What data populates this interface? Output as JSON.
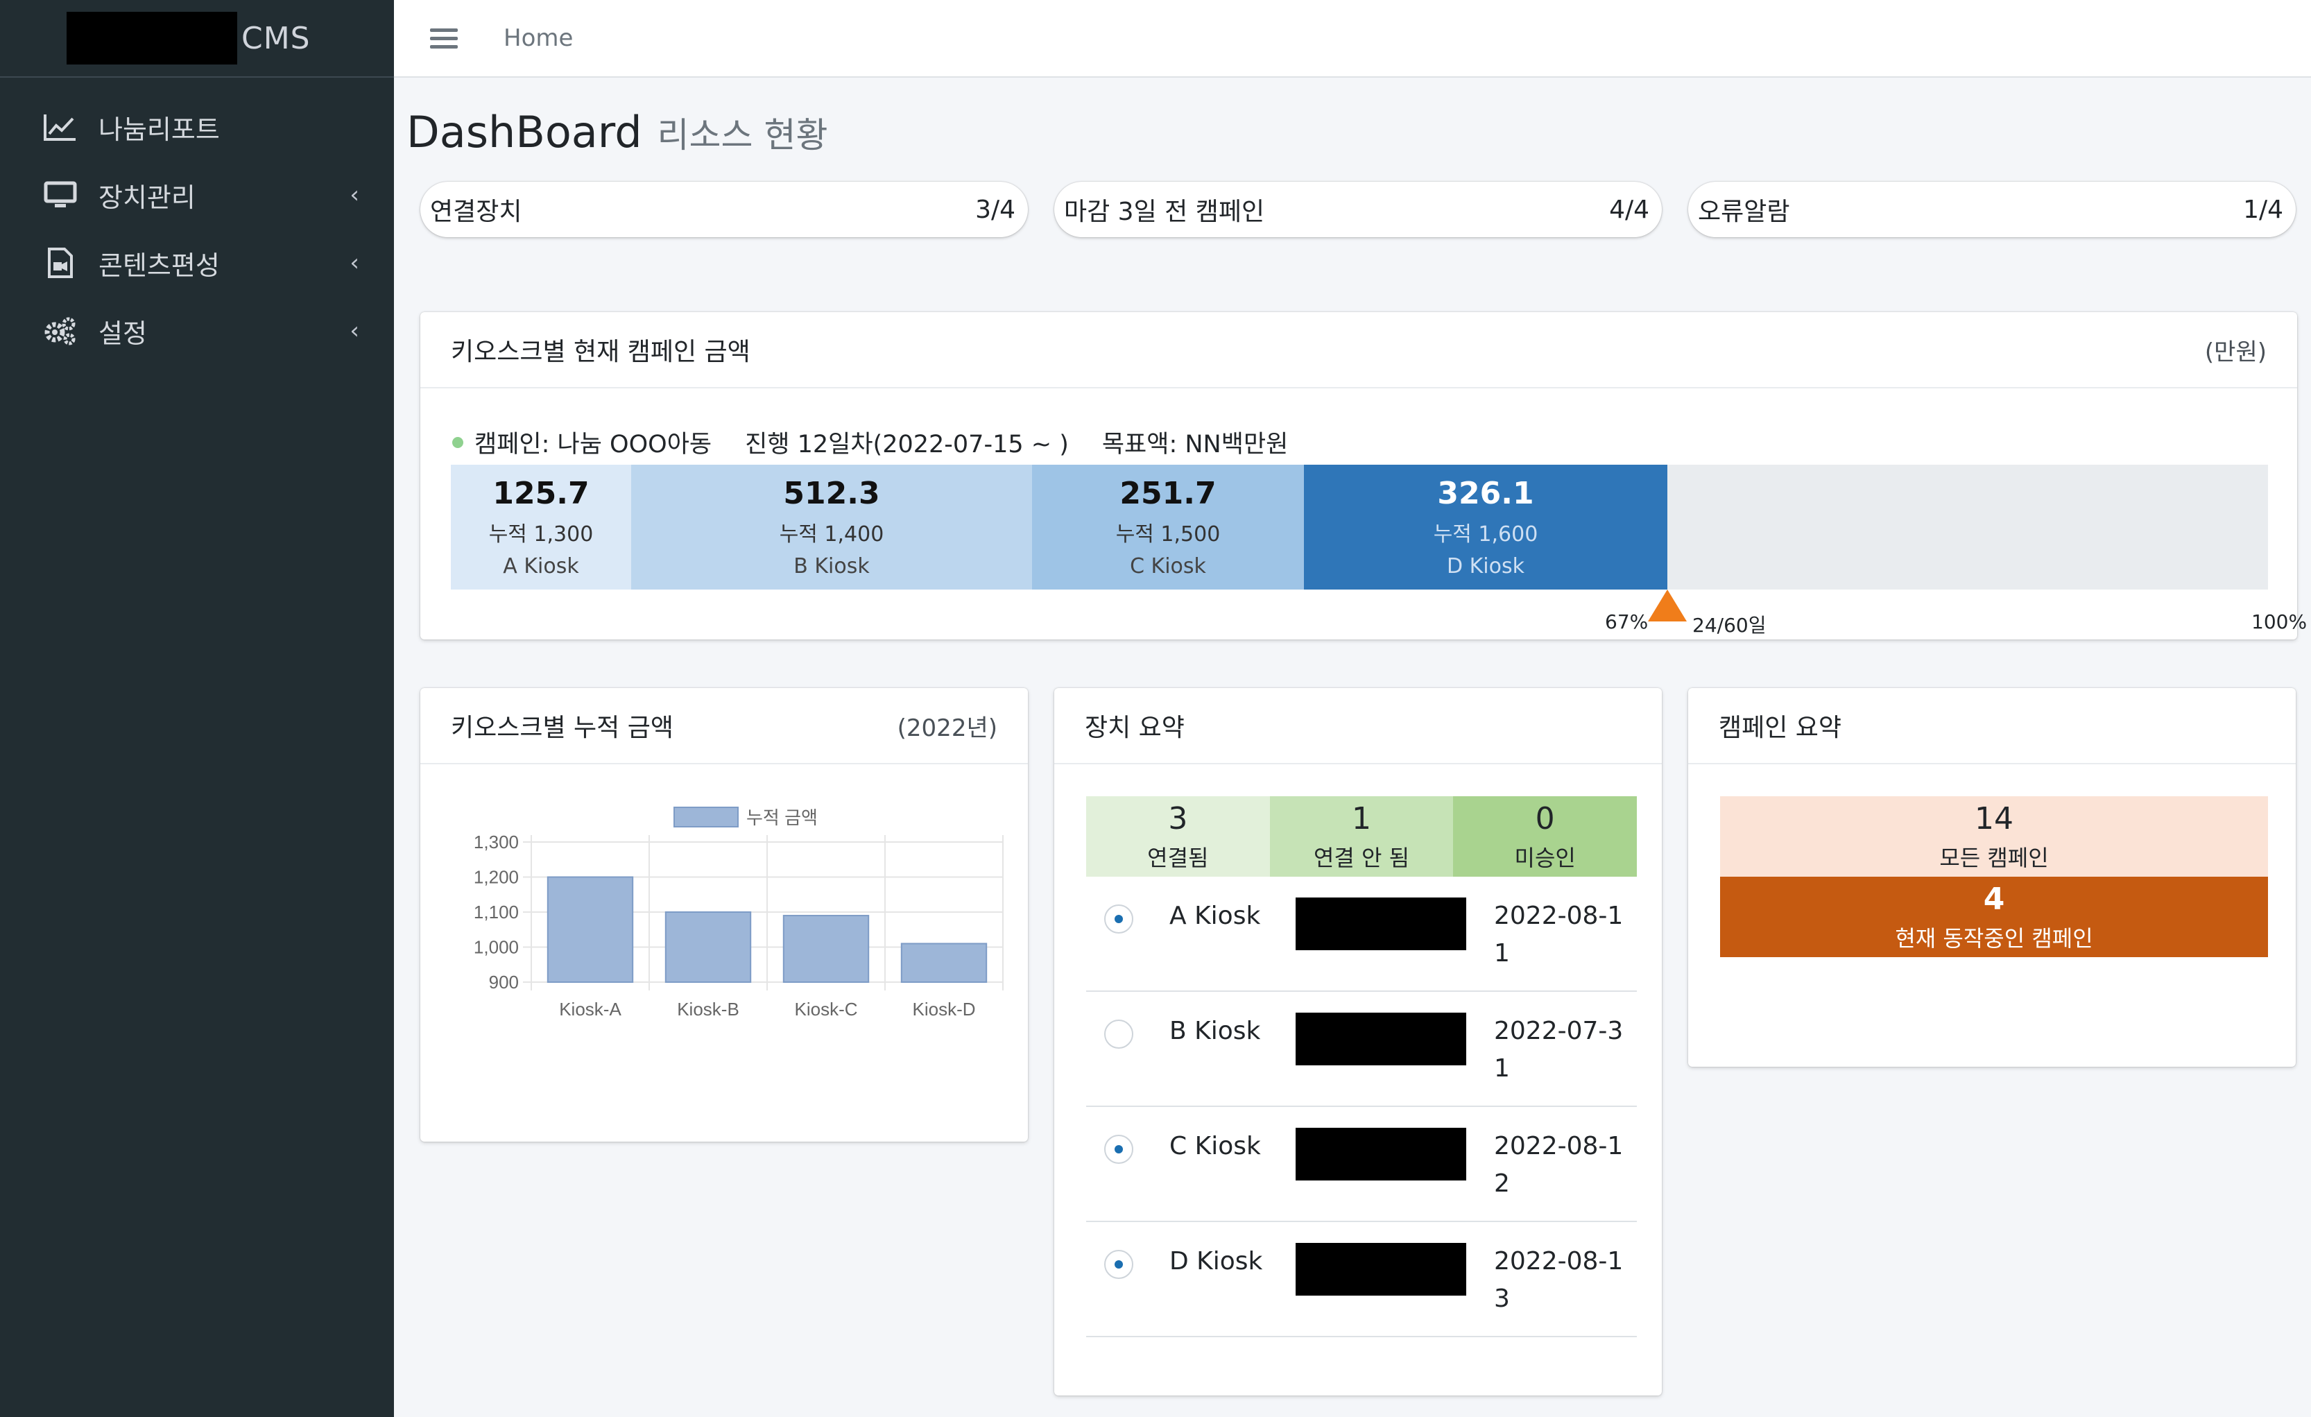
{
  "brand": {
    "suffix": "CMS"
  },
  "sidebar": {
    "items": [
      {
        "label": "나눔리포트",
        "icon": "line-chart-icon",
        "has_chevron": false
      },
      {
        "label": "장치관리",
        "icon": "monitor-icon",
        "has_chevron": true
      },
      {
        "label": "콘텐츠편성",
        "icon": "video-file-icon",
        "has_chevron": true
      },
      {
        "label": "설정",
        "icon": "gears-icon",
        "has_chevron": true
      }
    ]
  },
  "topbar": {
    "home": "Home"
  },
  "page": {
    "title": "DashBoard",
    "subtitle": "리소스 현황"
  },
  "info_boxes": [
    {
      "label": "연결장치",
      "value": "3/4"
    },
    {
      "label": "마감 3일 전 캠페인",
      "value": "4/4"
    },
    {
      "label": "오류알람",
      "value": "1/4"
    }
  ],
  "campaign_card": {
    "title": "키오스크별 현재 캠페인 금액",
    "unit": "(만원)",
    "campaign": "캠페인: 나눔 OOO아동",
    "progress": "진행 12일차(2022-07-15 ~ )",
    "goal": "목표액: NN백만원",
    "segments": [
      {
        "value": "125.7",
        "cumulative": "누적 1,300",
        "kiosk": "A Kiosk",
        "color": "#dbe9f7"
      },
      {
        "value": "512.3",
        "cumulative": "누적 1,400",
        "kiosk": "B Kiosk",
        "color": "#bcd6ee"
      },
      {
        "value": "251.7",
        "cumulative": "누적 1,500",
        "kiosk": "C Kiosk",
        "color": "#9ec4e6"
      },
      {
        "value": "326.1",
        "cumulative": "누적 1,600",
        "kiosk": "D Kiosk",
        "color": "#2f76b8"
      }
    ],
    "marker_percent": "67%",
    "marker_days": "24/60일",
    "end_percent": "100%",
    "marker_color": "#f07d1a"
  },
  "chart_card": {
    "title": "키오스크별 누적 금액",
    "year": "(2022년)"
  },
  "chart_data": {
    "type": "bar",
    "categories": [
      "Kiosk-A",
      "Kiosk-B",
      "Kiosk-C",
      "Kiosk-D"
    ],
    "series": [
      {
        "name": "누적 금액",
        "values": [
          1200,
          1100,
          1090,
          1010
        ]
      }
    ],
    "ylim": [
      900,
      1300
    ],
    "yticks": [
      "1,300",
      "1,200",
      "1,100",
      "1,000",
      "900"
    ],
    "ytick_values": [
      1300,
      1200,
      1100,
      1000,
      900
    ],
    "grid": true,
    "legend": "top",
    "bar_color": "#9db6d8"
  },
  "device_card": {
    "title": "장치 요약",
    "stats": [
      {
        "num": "3",
        "label": "연결됨",
        "color": "#e2f0da"
      },
      {
        "num": "1",
        "label": "연결 안 됨",
        "color": "#c6e3b6"
      },
      {
        "num": "0",
        "label": "미승인",
        "color": "#a9d38f"
      }
    ],
    "devices": [
      {
        "name": "A Kiosk",
        "date": "2022-08-11",
        "checked": true
      },
      {
        "name": "B Kiosk",
        "date": "2022-07-31",
        "checked": false
      },
      {
        "name": "C Kiosk",
        "date": "2022-08-12",
        "checked": true
      },
      {
        "name": "D Kiosk",
        "date": "2022-08-13",
        "checked": true
      }
    ]
  },
  "campaign_summary": {
    "title": "캠페인 요약",
    "all_num": "14",
    "all_label": "모든 캠페인",
    "active_num": "4",
    "active_label": "현재 동작중인 캠페인",
    "all_color": "#fbe3d6",
    "active_color": "#c55a11"
  }
}
